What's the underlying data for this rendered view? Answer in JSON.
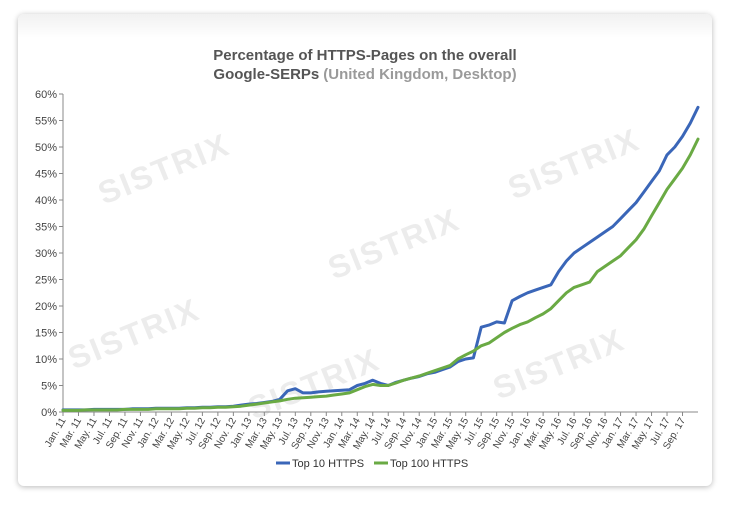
{
  "chart_data": {
    "type": "line",
    "title_main": "Percentage of HTTPS-Pages on the overall",
    "title_line2": "Google-SERPs",
    "title_sub": "(United Kingdom, Desktop)",
    "watermark": "SISTRIX",
    "ylim": [
      0,
      60
    ],
    "y_ticks": [
      "0%",
      "5%",
      "10%",
      "15%",
      "20%",
      "25%",
      "30%",
      "35%",
      "40%",
      "45%",
      "50%",
      "55%",
      "60%"
    ],
    "x_tick_labels": [
      "Jan. 11",
      "Mar. 11",
      "May. 11",
      "Jul. 11",
      "Sep. 11",
      "Nov. 11",
      "Jan. 12",
      "Mar. 12",
      "May. 12",
      "Jul. 12",
      "Sep. 12",
      "Nov. 12",
      "Jan. 13",
      "Mar. 13",
      "May. 13",
      "Jul. 13",
      "Sep. 13",
      "Nov. 13",
      "Jan. 14",
      "Mar. 14",
      "May. 14",
      "Jul. 14",
      "Sep. 14",
      "Nov. 14",
      "Jan. 15",
      "Mar. 15",
      "May. 15",
      "Jul. 15",
      "Sep. 15",
      "Nov. 15",
      "Jan. 16",
      "Mar. 16",
      "May. 16",
      "Jul. 16",
      "Sep. 16",
      "Nov. 16",
      "Jan. 17",
      "Mar. 17",
      "May. 17",
      "Jul. 17",
      "Sep. 17"
    ],
    "x_months": [
      "2011-01",
      "2011-02",
      "2011-03",
      "2011-04",
      "2011-05",
      "2011-06",
      "2011-07",
      "2011-08",
      "2011-09",
      "2011-10",
      "2011-11",
      "2011-12",
      "2012-01",
      "2012-02",
      "2012-03",
      "2012-04",
      "2012-05",
      "2012-06",
      "2012-07",
      "2012-08",
      "2012-09",
      "2012-10",
      "2012-11",
      "2012-12",
      "2013-01",
      "2013-02",
      "2013-03",
      "2013-04",
      "2013-05",
      "2013-06",
      "2013-07",
      "2013-08",
      "2013-09",
      "2013-10",
      "2013-11",
      "2013-12",
      "2014-01",
      "2014-02",
      "2014-03",
      "2014-04",
      "2014-05",
      "2014-06",
      "2014-07",
      "2014-08",
      "2014-09",
      "2014-10",
      "2014-11",
      "2014-12",
      "2015-01",
      "2015-02",
      "2015-03",
      "2015-04",
      "2015-05",
      "2015-06",
      "2015-07",
      "2015-08",
      "2015-09",
      "2015-10",
      "2015-11",
      "2015-12",
      "2016-01",
      "2016-02",
      "2016-03",
      "2016-04",
      "2016-05",
      "2016-06",
      "2016-07",
      "2016-08",
      "2016-09",
      "2016-10",
      "2016-11",
      "2016-12",
      "2017-01",
      "2017-02",
      "2017-03",
      "2017-04",
      "2017-05",
      "2017-06",
      "2017-07",
      "2017-08",
      "2017-09",
      "2017-10",
      "2017-11"
    ],
    "series": [
      {
        "name": "Top 10 HTTPS",
        "color": "#3a66b8",
        "values": [
          0.4,
          0.4,
          0.4,
          0.4,
          0.5,
          0.5,
          0.5,
          0.5,
          0.5,
          0.6,
          0.6,
          0.6,
          0.7,
          0.7,
          0.7,
          0.7,
          0.8,
          0.8,
          0.9,
          0.9,
          1.0,
          1.0,
          1.1,
          1.3,
          1.5,
          1.6,
          1.8,
          2.0,
          2.4,
          4.0,
          4.4,
          3.6,
          3.6,
          3.8,
          3.9,
          4.0,
          4.1,
          4.2,
          5.0,
          5.4,
          6.0,
          5.4,
          5.0,
          5.6,
          6.0,
          6.4,
          6.7,
          7.2,
          7.5,
          8.0,
          8.5,
          9.5,
          10.0,
          10.2,
          16.0,
          16.4,
          17.0,
          16.8,
          21.0,
          21.8,
          22.5,
          23.0,
          23.5,
          24.0,
          26.5,
          28.5,
          30.0,
          31.0,
          32.0,
          33.0,
          34.0,
          35.0,
          36.5,
          38.0,
          39.5,
          41.5,
          43.5,
          45.5,
          48.5,
          50.0,
          52.0,
          54.5,
          57.5
        ]
      },
      {
        "name": "Top 100 HTTPS",
        "color": "#6aaa44",
        "values": [
          0.3,
          0.3,
          0.3,
          0.4,
          0.4,
          0.4,
          0.4,
          0.4,
          0.5,
          0.5,
          0.5,
          0.5,
          0.6,
          0.6,
          0.6,
          0.6,
          0.7,
          0.7,
          0.8,
          0.8,
          0.9,
          0.9,
          1.0,
          1.1,
          1.3,
          1.5,
          1.7,
          1.9,
          2.1,
          2.4,
          2.6,
          2.7,
          2.8,
          2.9,
          3.0,
          3.2,
          3.4,
          3.6,
          4.2,
          4.8,
          5.2,
          5.0,
          5.0,
          5.5,
          6.0,
          6.4,
          6.8,
          7.3,
          7.8,
          8.3,
          8.8,
          10.0,
          10.8,
          11.5,
          12.5,
          13.0,
          14.0,
          15.0,
          15.8,
          16.5,
          17.0,
          17.8,
          18.5,
          19.5,
          21.0,
          22.5,
          23.5,
          24.0,
          24.5,
          26.5,
          27.5,
          28.5,
          29.5,
          31.0,
          32.5,
          34.5,
          37.0,
          39.5,
          42.0,
          44.0,
          46.0,
          48.5,
          51.5
        ]
      }
    ],
    "legend_position": "bottom",
    "grid": false
  }
}
